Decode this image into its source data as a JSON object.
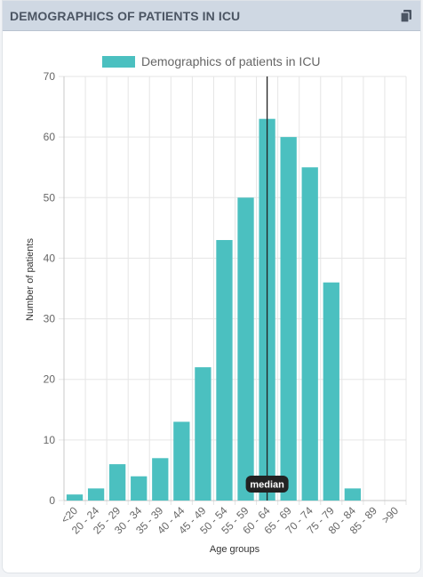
{
  "card": {
    "title": "DEMOGRAPHICS OF PATIENTS IN ICU",
    "copy_icon": "copy-icon"
  },
  "chart_data": {
    "type": "bar",
    "legend": "Demographics of patients in ICU",
    "legend_position": "top",
    "xlabel": "Age groups",
    "ylabel": "Number of patients",
    "ylim": [
      0,
      70
    ],
    "yticks": [
      0,
      10,
      20,
      30,
      40,
      50,
      60,
      70
    ],
    "grid": true,
    "bar_color": "#4bc0c0",
    "categories": [
      "<20",
      "20 - 24",
      "25 - 29",
      "30 - 34",
      "35 - 39",
      "40 - 44",
      "45 - 49",
      "50 - 54",
      "55 - 59",
      "60 - 64",
      "65 - 69",
      "70 - 74",
      "75 - 79",
      "80 - 84",
      "85 - 89",
      ">90"
    ],
    "values": [
      1,
      2,
      6,
      4,
      7,
      13,
      22,
      43,
      50,
      63,
      60,
      55,
      36,
      2,
      0,
      0
    ],
    "annotation": {
      "type": "vertical-line",
      "category": "60 - 64",
      "label": "median",
      "color": "#222222"
    }
  }
}
